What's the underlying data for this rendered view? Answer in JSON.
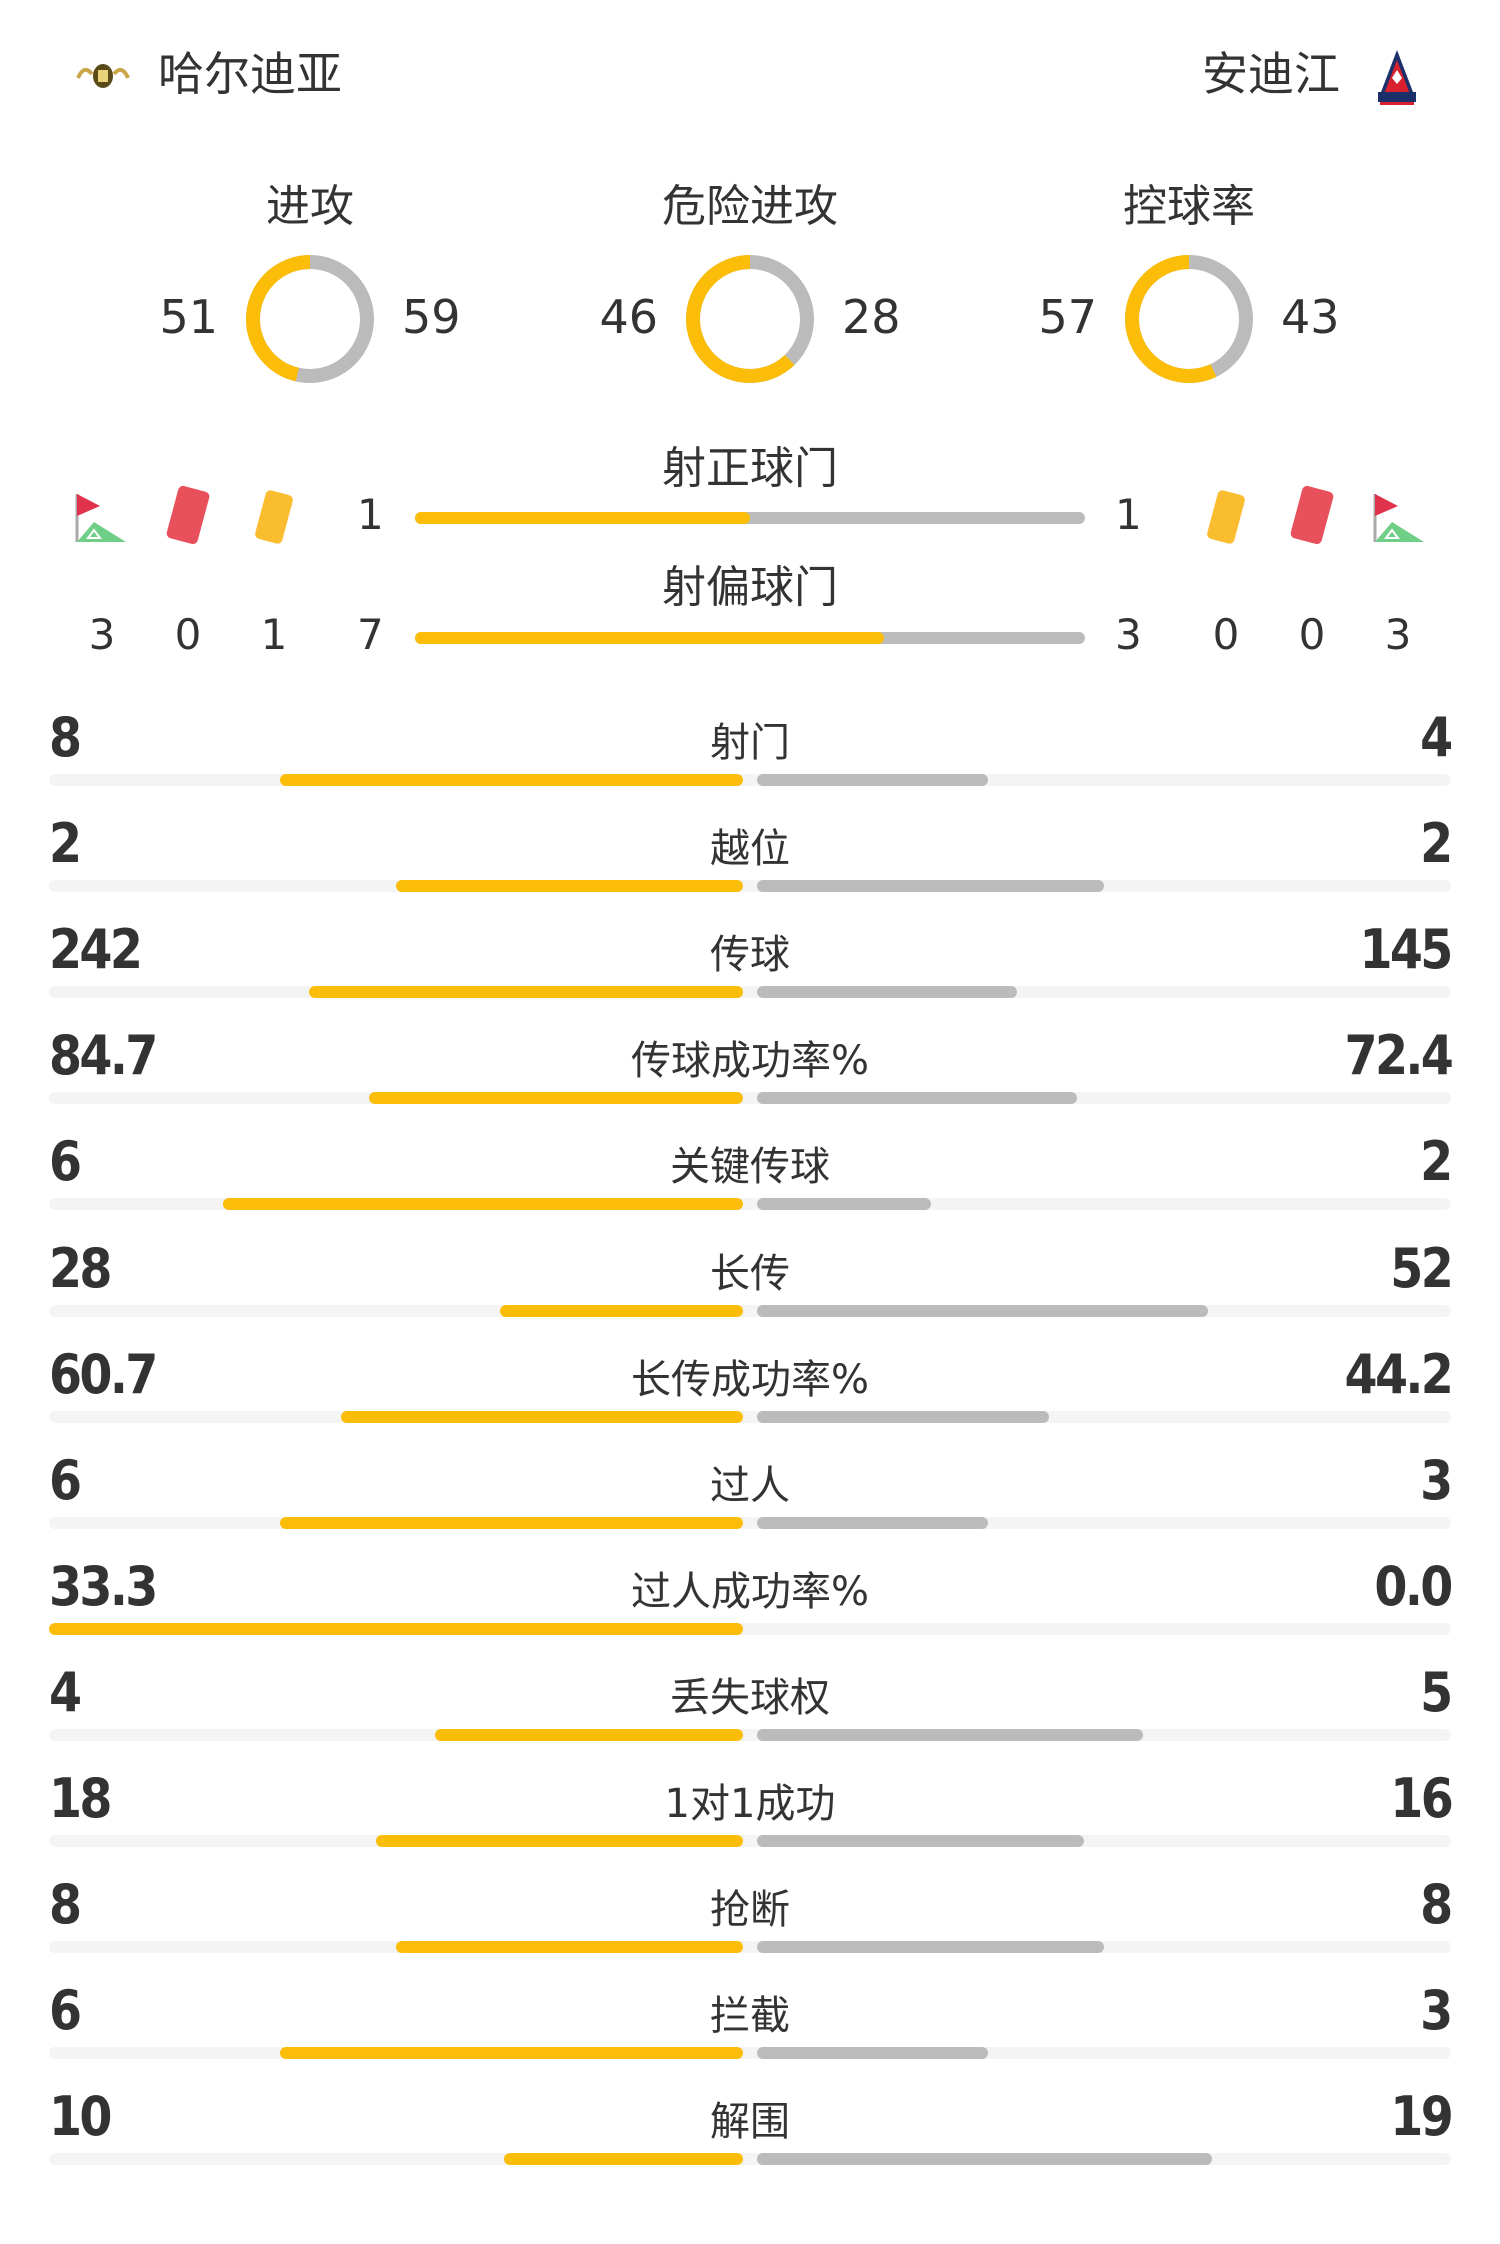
{
  "home": {
    "name": "哈尔迪亚",
    "logo": "hardia-crest"
  },
  "away": {
    "name": "安迪江",
    "logo": "ANDIJON"
  },
  "colors": {
    "home": "#fbbd08",
    "away": "#bbbbbb",
    "track": "#f4f4f4",
    "red_card": "#e8505b",
    "yellow_card": "#fbbd30",
    "corner_flag": "#e0324a",
    "corner_field": "#6fcf87"
  },
  "donuts": [
    {
      "label": "进攻",
      "home": 51,
      "away": 59
    },
    {
      "label": "危险进攻",
      "home": 46,
      "away": 28
    },
    {
      "label": "控球率",
      "home": 57,
      "away": 43
    }
  ],
  "shots_on": {
    "label": "射正球门",
    "home": 1,
    "away": 1
  },
  "shots_off": {
    "label": "射偏球门",
    "home": 7,
    "away": 3
  },
  "home_events": {
    "corners": 3,
    "red_cards": 0,
    "yellow_cards": 1
  },
  "away_events": {
    "corners": 3,
    "red_cards": 0,
    "yellow_cards": 0
  },
  "stats": [
    {
      "label": "射门",
      "home": "8",
      "away": "4"
    },
    {
      "label": "越位",
      "home": "2",
      "away": "2"
    },
    {
      "label": "传球",
      "home": "242",
      "away": "145"
    },
    {
      "label": "传球成功率%",
      "home": "84.7",
      "away": "72.4"
    },
    {
      "label": "关键传球",
      "home": "6",
      "away": "2"
    },
    {
      "label": "长传",
      "home": "28",
      "away": "52"
    },
    {
      "label": "长传成功率%",
      "home": "60.7",
      "away": "44.2"
    },
    {
      "label": "过人",
      "home": "6",
      "away": "3"
    },
    {
      "label": "过人成功率%",
      "home": "33.3",
      "away": "0.0"
    },
    {
      "label": "丢失球权",
      "home": "4",
      "away": "5"
    },
    {
      "label": "1对1成功",
      "home": "18",
      "away": "16"
    },
    {
      "label": "抢断",
      "home": "8",
      "away": "8"
    },
    {
      "label": "拦截",
      "home": "6",
      "away": "3"
    },
    {
      "label": "解围",
      "home": "10",
      "away": "19"
    }
  ]
}
